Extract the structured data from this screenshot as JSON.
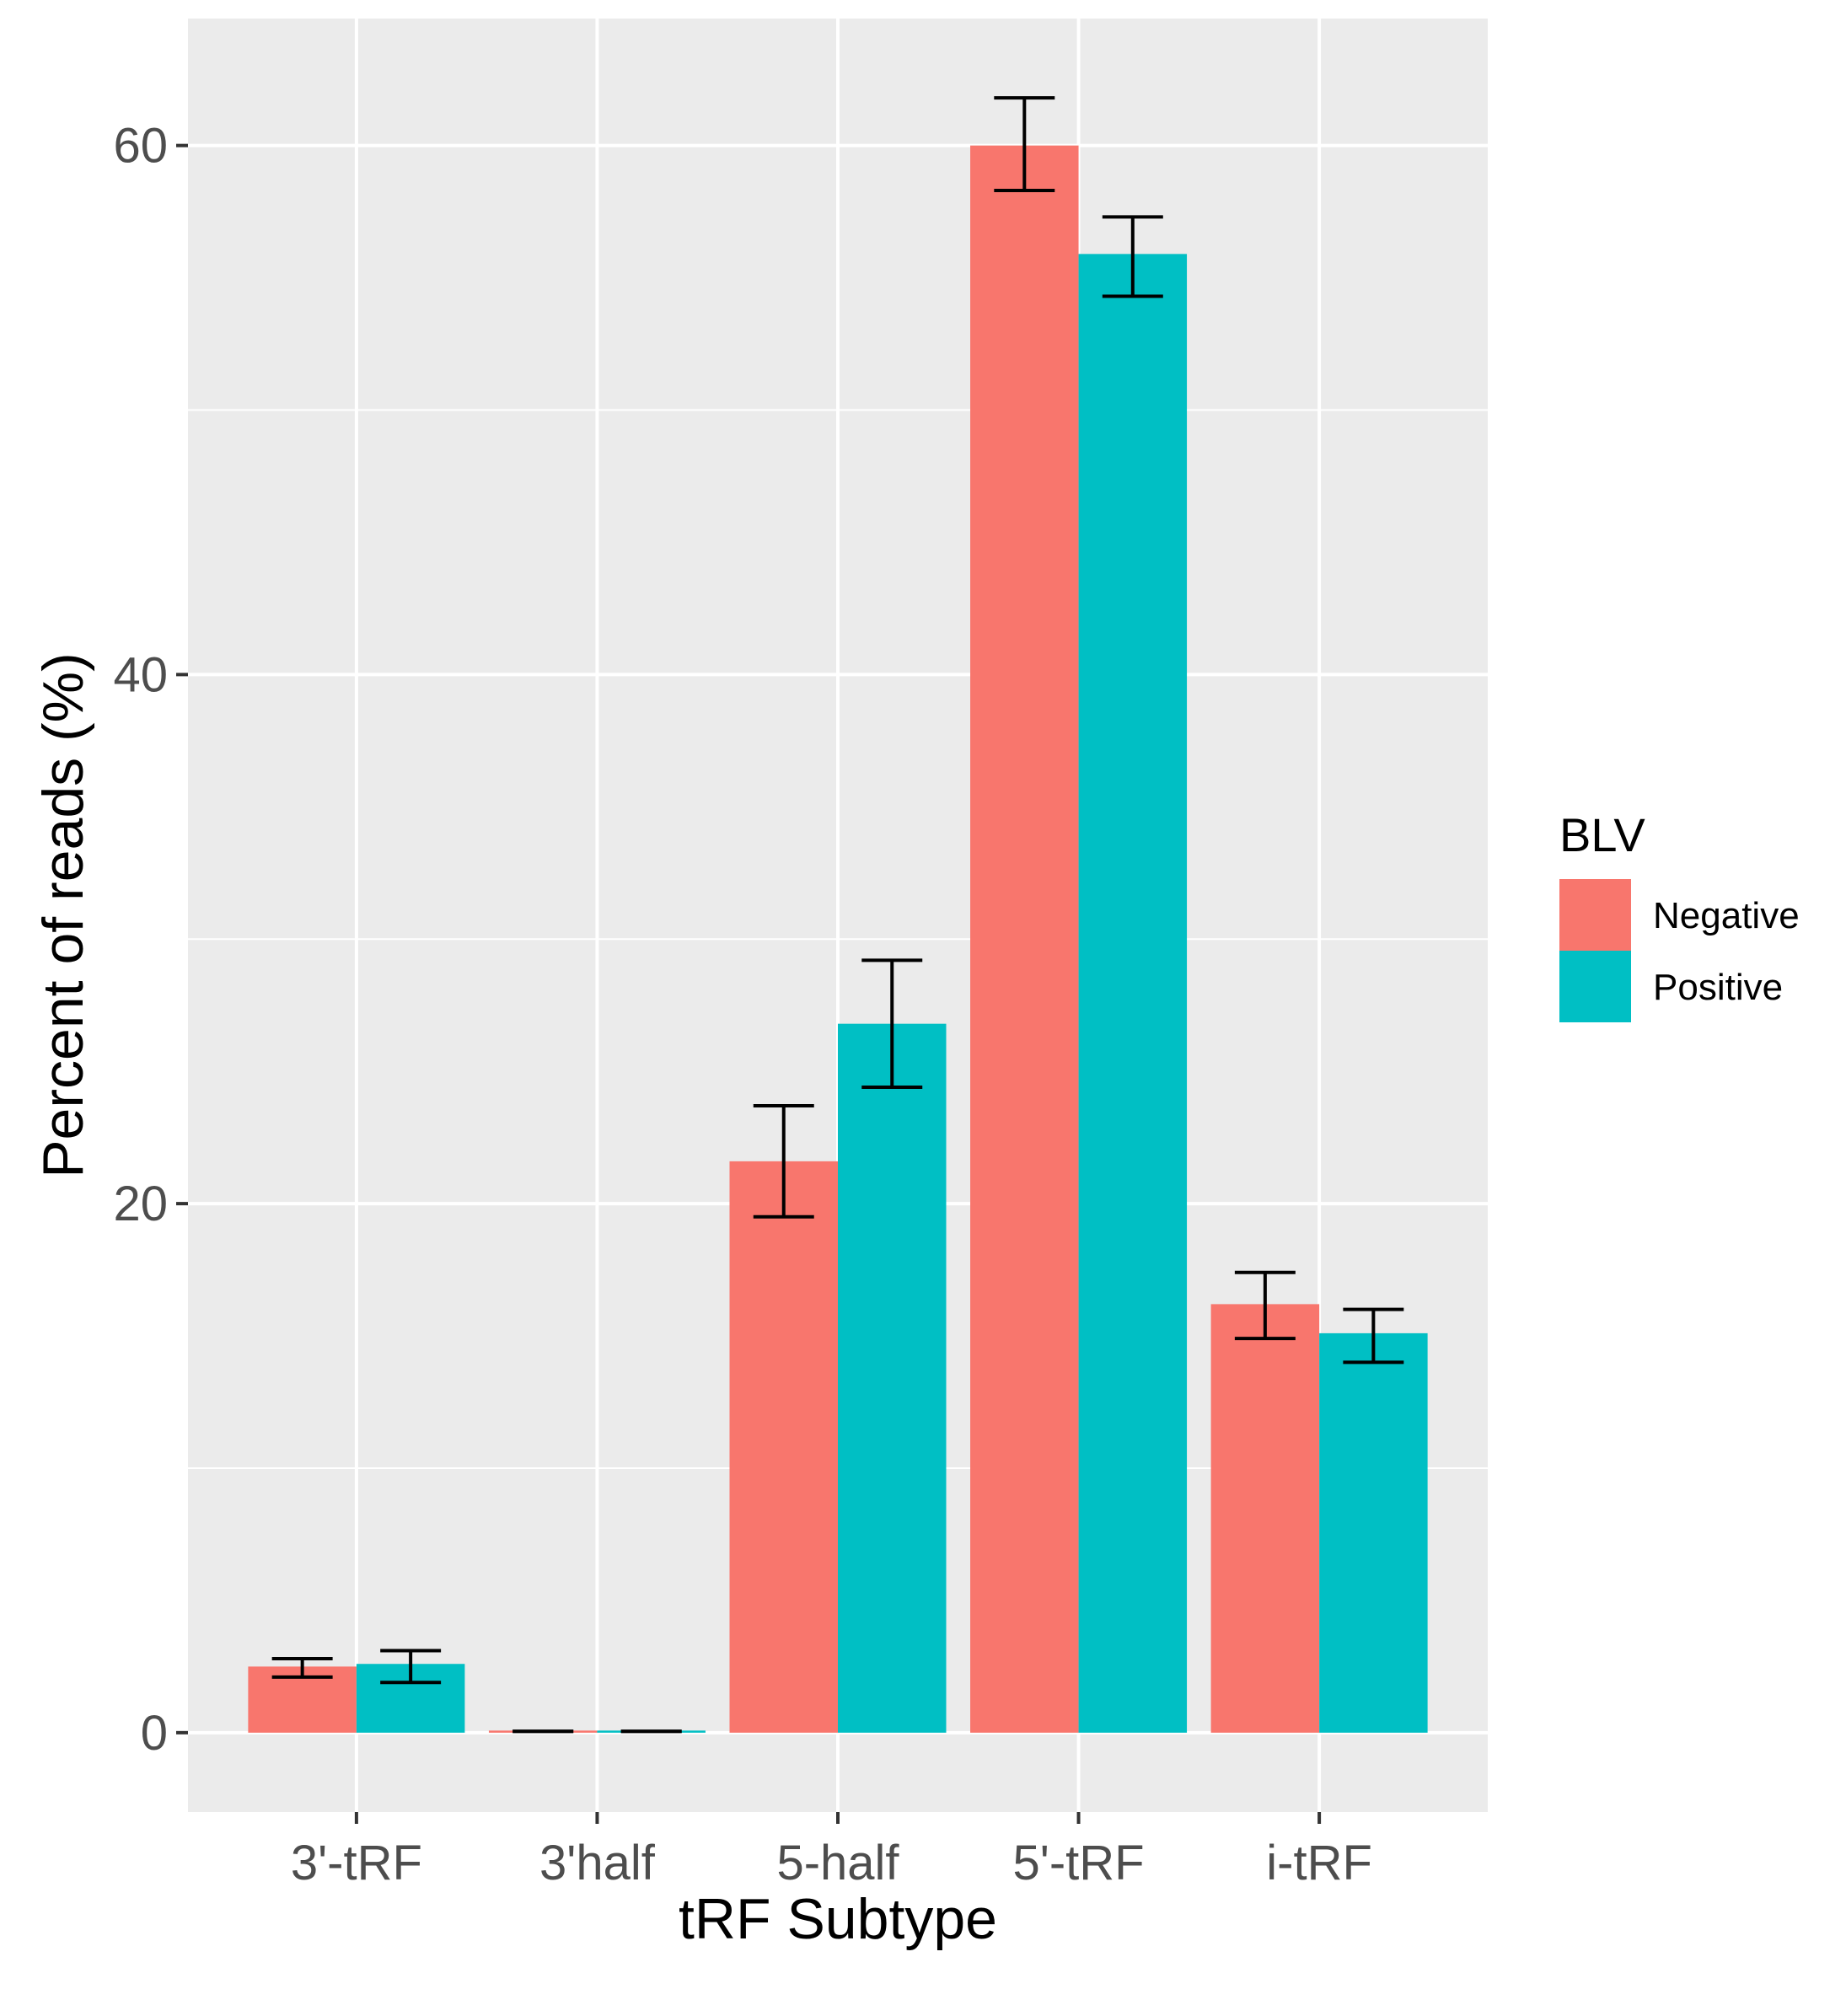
{
  "chart_data": {
    "type": "bar",
    "title": "",
    "xlabel": "tRF Subtype",
    "ylabel": "Percent of reads (%)",
    "categories": [
      "3'-tRF",
      "3'half",
      "5-half",
      "5'-tRF",
      "i-tRF"
    ],
    "series": [
      {
        "name": "Negative",
        "color": "#F8766D",
        "values": [
          2.5,
          0.05,
          21.6,
          60.0,
          16.2
        ],
        "error_low": [
          2.1,
          0.05,
          19.5,
          58.3,
          14.9
        ],
        "error_high": [
          2.8,
          0.05,
          23.7,
          61.8,
          17.4
        ]
      },
      {
        "name": "Positive",
        "color": "#00BFC4",
        "values": [
          2.6,
          0.05,
          26.8,
          55.9,
          15.1
        ],
        "error_low": [
          1.9,
          0.05,
          24.4,
          54.3,
          14.0
        ],
        "error_high": [
          3.1,
          0.05,
          29.2,
          57.3,
          16.0
        ]
      }
    ],
    "ylim": [
      -3.0,
      64.8
    ],
    "yticks": [
      0,
      20,
      40,
      60
    ],
    "ytick_labels": [
      "0",
      "20",
      "40",
      "60"
    ],
    "legend": {
      "title": "BLV",
      "position": "right"
    },
    "grid": true
  }
}
